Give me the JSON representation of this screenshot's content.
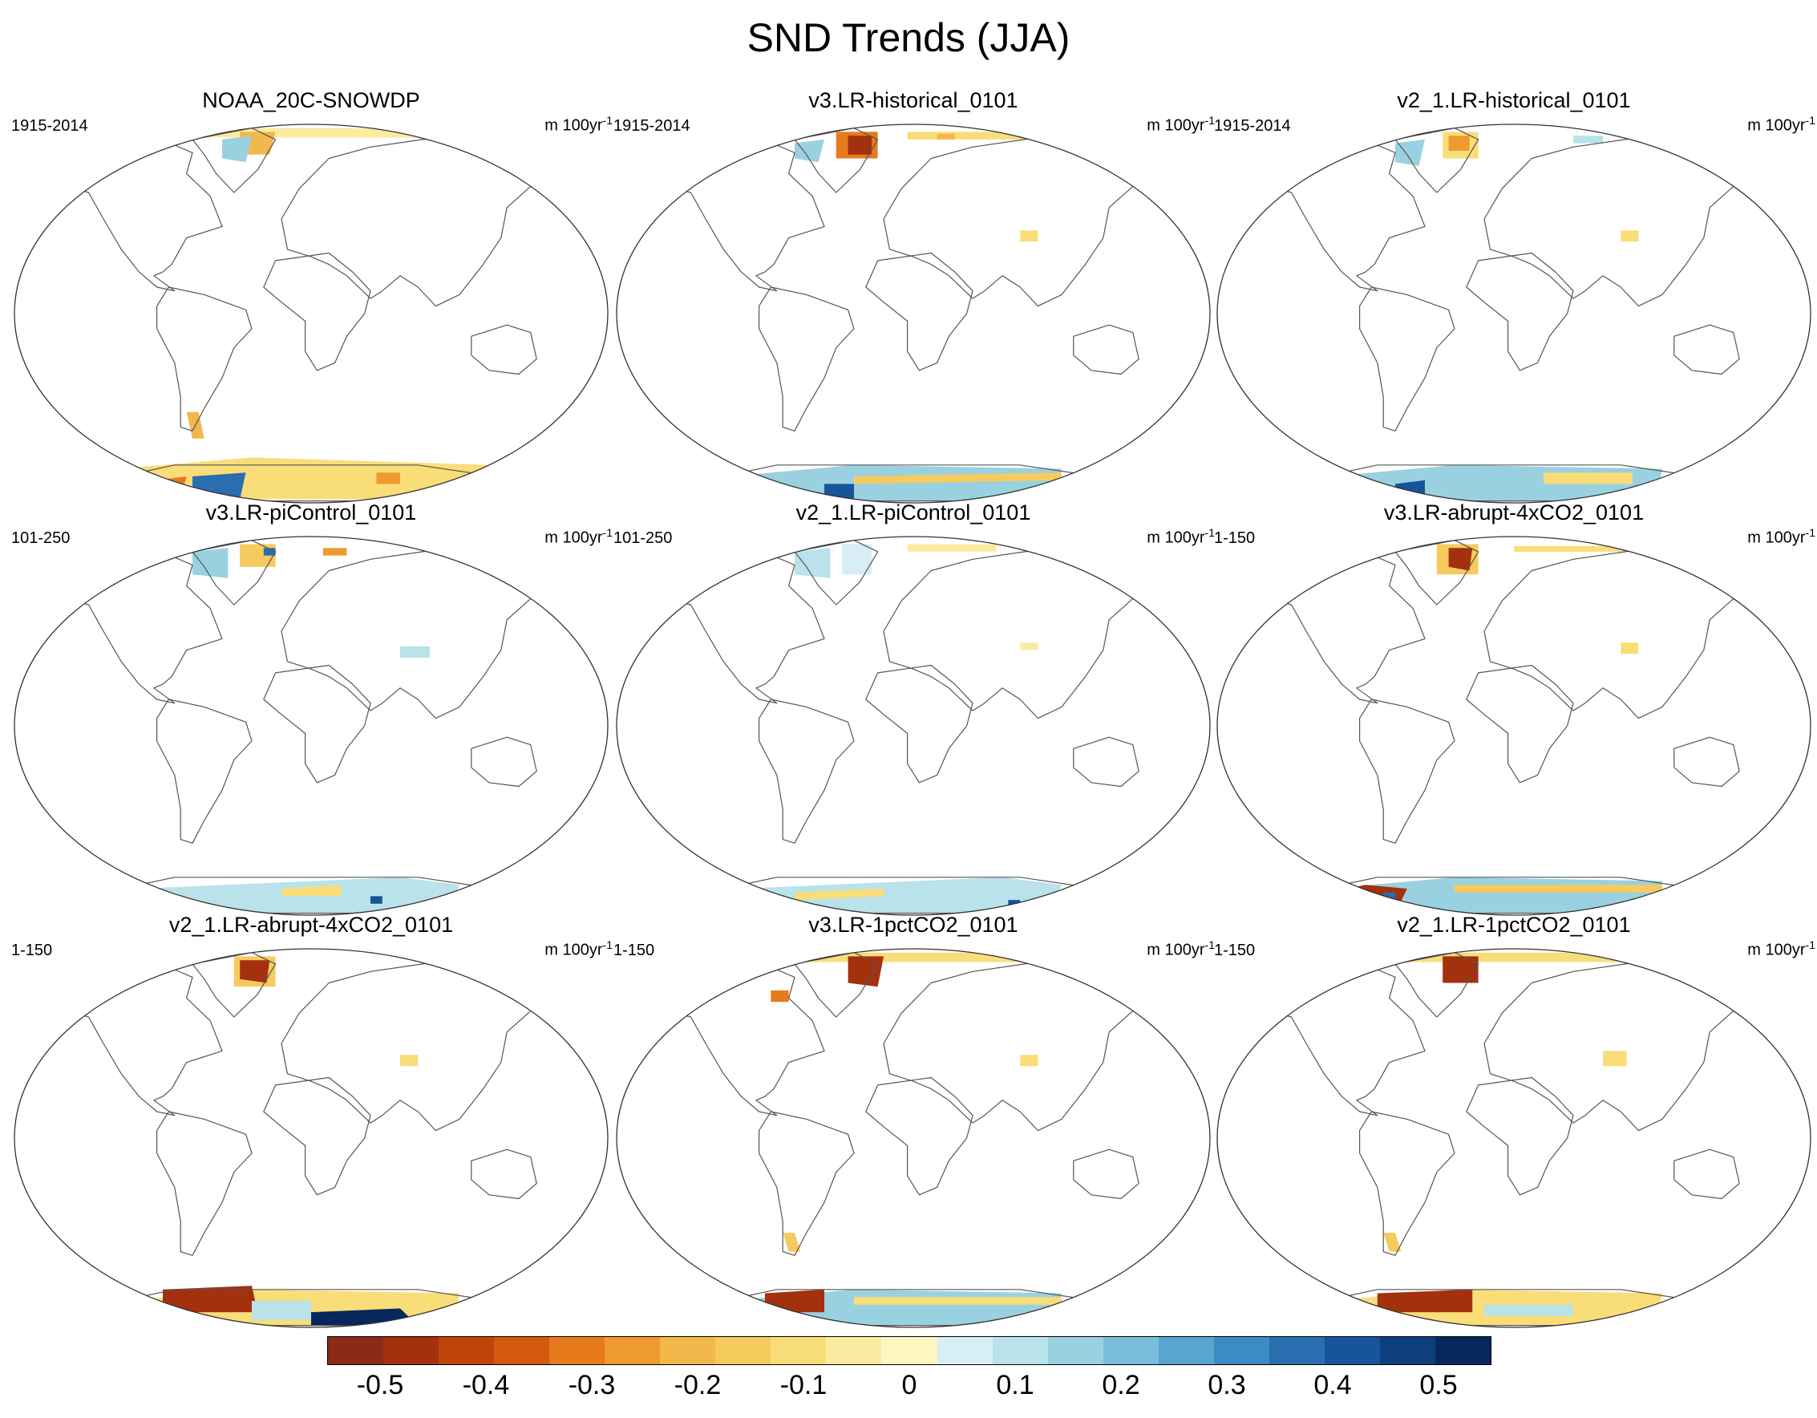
{
  "title": "SND Trends (JJA)",
  "units_main": "m 100yr",
  "units_exp": "-1",
  "chart_data": {
    "type": "map-grid",
    "variable": "SND",
    "season": "JJA",
    "colorbar": {
      "ticks": [
        "-0.5",
        "-0.4",
        "-0.3",
        "-0.2",
        "-0.1",
        "0",
        "0.1",
        "0.2",
        "0.3",
        "0.4",
        "0.5"
      ],
      "range": [
        -0.55,
        0.55
      ],
      "step": 0.05,
      "colors": [
        "#8b2a16",
        "#a3310e",
        "#c0450a",
        "#d45a12",
        "#e67a1c",
        "#ee9a30",
        "#f2b84c",
        "#f6cb5e",
        "#f9dd78",
        "#fbeba0",
        "#fdf6c0",
        "#d8eef6",
        "#b9e2ea",
        "#9ad1e0",
        "#7abdd8",
        "#5aa5d0",
        "#3d8bc4",
        "#2a6eb0",
        "#17549a",
        "#0d3e7e",
        "#06285c"
      ]
    },
    "panels": [
      {
        "title": "NOAA_20C-SNOWDP",
        "period": "1915-2014"
      },
      {
        "title": "v3.LR-historical_0101",
        "period": "1915-2014"
      },
      {
        "title": "v2_1.LR-historical_0101",
        "period": "1915-2014"
      },
      {
        "title": "v3.LR-piControl_0101",
        "period": "101-250"
      },
      {
        "title": "v2_1.LR-piControl_0101",
        "period": "101-250"
      },
      {
        "title": "v3.LR-abrupt-4xCO2_0101",
        "period": "1-150"
      },
      {
        "title": "v2_1.LR-abrupt-4xCO2_0101",
        "period": "1-150"
      },
      {
        "title": "v3.LR-1pctCO2_0101",
        "period": "1-150"
      },
      {
        "title": "v2_1.LR-1pctCO2_0101",
        "period": "1-150"
      }
    ]
  }
}
